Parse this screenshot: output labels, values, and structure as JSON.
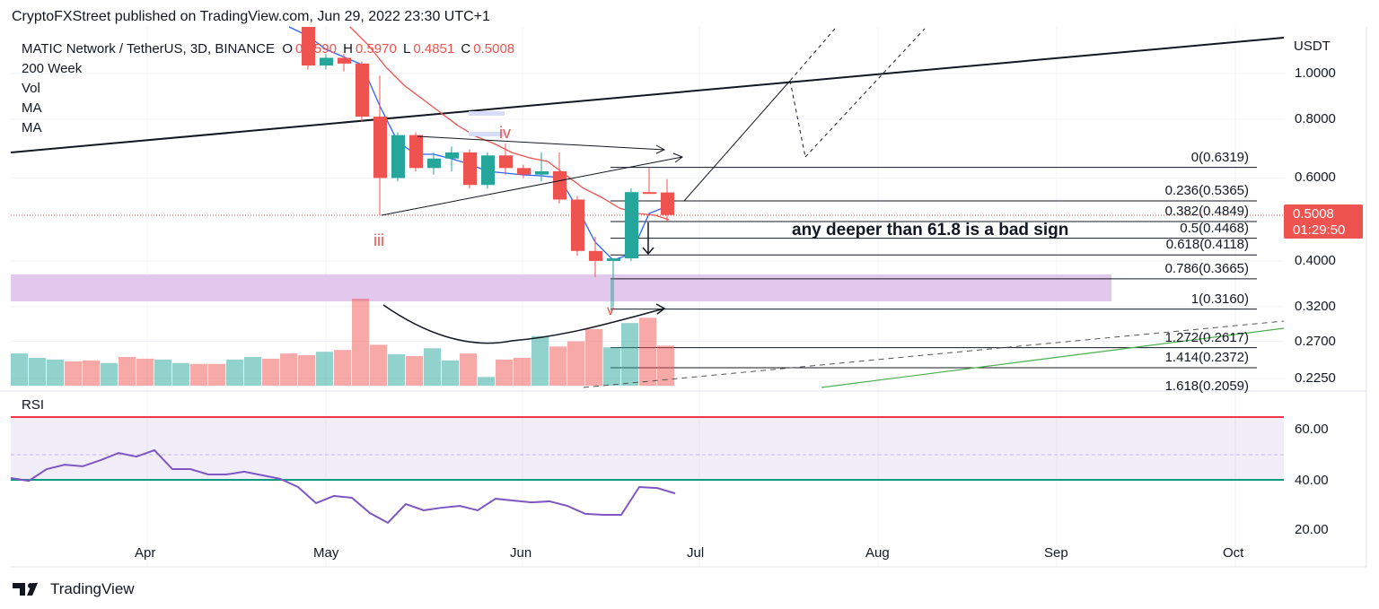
{
  "header": "CryptoFXStreet published on TradingView.com, Jun 29, 2022 23:30 UTC+1",
  "legend": {
    "symbol": "MATIC Network / TetherUS, 3D, BINANCE",
    "o_label": "O",
    "o": "0.5590",
    "h_label": "H",
    "h": "0.5970",
    "l_label": "L",
    "l": "0.4851",
    "c_label": "C",
    "c": "0.5008",
    "indicators": [
      "200 Week",
      "Vol",
      "MA",
      "MA"
    ]
  },
  "price_tag": {
    "price": "0.5008",
    "countdown": "01:29:50"
  },
  "annotation": "any deeper than 61.8 is a bad sign",
  "waves": [
    "iii",
    "iv",
    "v"
  ],
  "rsi_label": "RSI",
  "footer": "TradingView",
  "colors": {
    "up": "#26a69a",
    "down": "#ef5350",
    "ma_fast": "#2962ff",
    "ma_slow": "#ef5350",
    "zone": "#e1c8ec",
    "rsi": "#7e57c2"
  },
  "chart_data": {
    "type": "candlestick",
    "symbol": "MATICUSDT",
    "interval": "3D",
    "y_scale": "log",
    "y_unit": "USDT",
    "y_ticks": [
      "1.0000",
      "0.8000",
      "0.6000",
      "0.4000",
      "0.3200",
      "0.2700",
      "0.2250"
    ],
    "x_ticks": [
      "Apr",
      "May",
      "Jun",
      "Jul",
      "Aug",
      "Sep",
      "Oct"
    ],
    "candles": [
      {
        "o": 1.26,
        "h": 1.3,
        "l": 1.02,
        "c": 1.04
      },
      {
        "o": 1.04,
        "h": 1.1,
        "l": 1.02,
        "c": 1.08
      },
      {
        "o": 1.08,
        "h": 1.1,
        "l": 1.01,
        "c": 1.05
      },
      {
        "o": 1.05,
        "h": 1.06,
        "l": 0.79,
        "c": 0.81
      },
      {
        "o": 0.81,
        "h": 0.99,
        "l": 0.5,
        "c": 0.6
      },
      {
        "o": 0.6,
        "h": 0.75,
        "l": 0.59,
        "c": 0.74
      },
      {
        "o": 0.74,
        "h": 0.75,
        "l": 0.62,
        "c": 0.63
      },
      {
        "o": 0.63,
        "h": 0.68,
        "l": 0.61,
        "c": 0.66
      },
      {
        "o": 0.66,
        "h": 0.7,
        "l": 0.62,
        "c": 0.68
      },
      {
        "o": 0.68,
        "h": 0.69,
        "l": 0.57,
        "c": 0.58
      },
      {
        "o": 0.58,
        "h": 0.68,
        "l": 0.57,
        "c": 0.67
      },
      {
        "o": 0.67,
        "h": 0.71,
        "l": 0.61,
        "c": 0.63
      },
      {
        "o": 0.63,
        "h": 0.64,
        "l": 0.6,
        "c": 0.61
      },
      {
        "o": 0.61,
        "h": 0.68,
        "l": 0.59,
        "c": 0.62
      },
      {
        "o": 0.62,
        "h": 0.68,
        "l": 0.53,
        "c": 0.54
      },
      {
        "o": 0.54,
        "h": 0.55,
        "l": 0.41,
        "c": 0.42
      },
      {
        "o": 0.42,
        "h": 0.45,
        "l": 0.37,
        "c": 0.4
      },
      {
        "o": 0.4,
        "h": 0.4,
        "l": 0.32,
        "c": 0.405
      },
      {
        "o": 0.405,
        "h": 0.57,
        "l": 0.4,
        "c": 0.56
      },
      {
        "o": 0.56,
        "h": 0.63,
        "l": 0.555,
        "c": 0.558
      },
      {
        "o": 0.559,
        "h": 0.597,
        "l": 0.4851,
        "c": 0.5008
      }
    ],
    "volume": [
      0.37,
      0.32,
      0.3,
      0.28,
      0.29,
      0.26,
      0.33,
      0.31,
      0.3,
      0.26,
      0.25,
      0.25,
      0.3,
      0.33,
      0.31,
      0.37,
      0.35,
      0.39,
      0.41,
      1.0,
      0.47,
      0.36,
      0.34,
      0.43,
      0.29,
      0.37,
      0.1,
      0.3,
      0.32,
      0.57,
      0.45,
      0.51,
      0.65,
      0.44,
      0.72,
      0.78,
      0.46
    ],
    "fib_levels": [
      {
        "ratio": "0",
        "price": "0.6319",
        "label": "0(0.6319)"
      },
      {
        "ratio": "0.236",
        "price": "0.5365",
        "label": "0.236(0.5365)"
      },
      {
        "ratio": "0.382",
        "price": "0.4849",
        "label": "0.382(0.4849)"
      },
      {
        "ratio": "0.5",
        "price": "0.4468",
        "label": "0.5(0.4468)"
      },
      {
        "ratio": "0.618",
        "price": "0.4118",
        "label": "0.618(0.4118)"
      },
      {
        "ratio": "0.786",
        "price": "0.3665",
        "label": "0.786(0.3665)"
      },
      {
        "ratio": "1",
        "price": "0.3160",
        "label": "1(0.3160)"
      },
      {
        "ratio": "1.272",
        "price": "0.2617",
        "label": "1.272(0.2617)"
      },
      {
        "ratio": "1.414",
        "price": "0.2372",
        "label": "1.414(0.2372)"
      },
      {
        "ratio": "1.618",
        "price": "0.2059",
        "label": "1.618(0.2059)"
      }
    ],
    "rsi": {
      "ticks": [
        "60.00",
        "40.00",
        "20.00"
      ],
      "upper": 65,
      "lower": 40,
      "values": [
        40.7,
        39.6,
        44.2,
        45.9,
        45.3,
        47.7,
        50.5,
        49.1,
        51.6,
        44.2,
        44.2,
        42.1,
        42.1,
        43.2,
        41.8,
        40.4,
        37.2,
        30.9,
        33.7,
        33.0,
        27.0,
        23.2,
        30.5,
        28.1,
        29.1,
        29.8,
        28.1,
        32.6,
        31.9,
        31.2,
        31.6,
        29.8,
        26.7,
        26.3,
        26.3,
        37.2,
        36.8,
        34.7
      ]
    }
  }
}
